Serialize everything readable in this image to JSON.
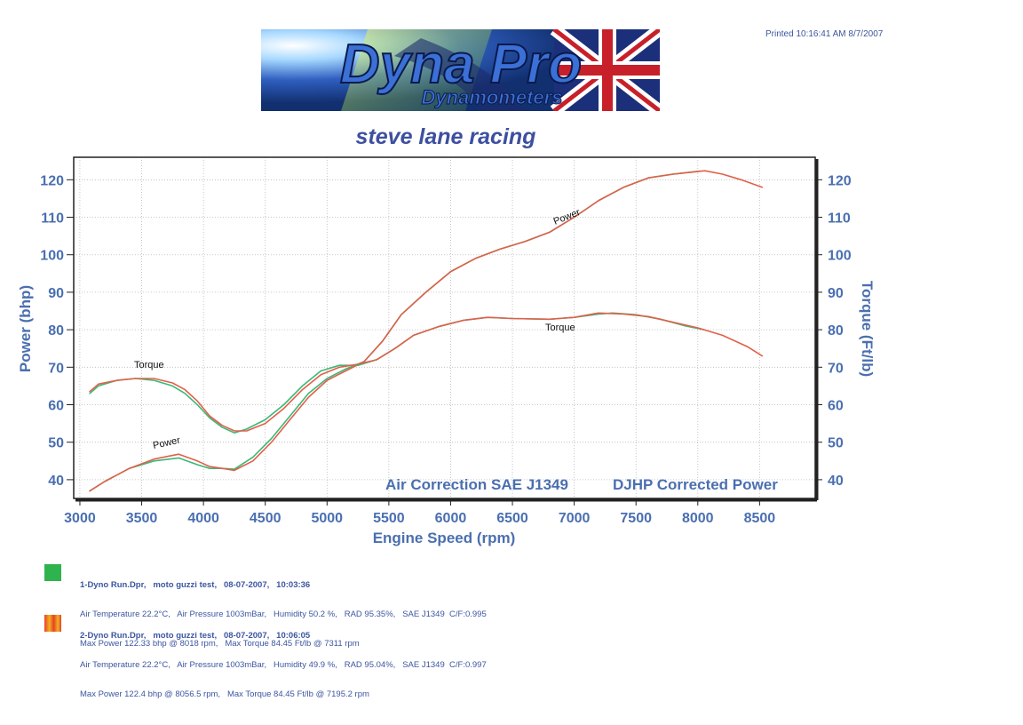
{
  "header": {
    "printed": "Printed 10:16:41 AM  8/7/2007",
    "logo_main": "Dyna Pro",
    "logo_sub": "Dynamometers",
    "subtitle": "steve lane racing"
  },
  "colors": {
    "run1": "#3cb878",
    "run2": "#e0604a",
    "axis_text": "#4a6fb0",
    "grid": "#b8b8b8",
    "text": "#3c56a0"
  },
  "chart_data": {
    "type": "line",
    "xlabel": "Engine Speed (rpm)",
    "ylabel_left": "Power (bhp)",
    "ylabel_right": "Torque (Ft/lb)",
    "xlim": [
      2950,
      8950
    ],
    "ylim": [
      35,
      126
    ],
    "x_ticks": [
      3000,
      3500,
      4000,
      4500,
      5000,
      5500,
      6000,
      6500,
      7000,
      7500,
      8000,
      8500
    ],
    "y_ticks": [
      40,
      50,
      60,
      70,
      80,
      90,
      100,
      110,
      120
    ],
    "grid": true,
    "annotations": {
      "torque_left": "Torque",
      "torque_right": "Torque",
      "power_left": "Power",
      "power_right": "Power",
      "air_correction": "Air Correction SAE J1349",
      "corrected": "DJHP Corrected Power"
    },
    "series": [
      {
        "name": "1-Dyno Run.Dpr - Power",
        "color": "#3cb878",
        "points": [
          [
            3080,
            37
          ],
          [
            3200,
            39.5
          ],
          [
            3400,
            43
          ],
          [
            3600,
            45
          ],
          [
            3800,
            45.8
          ],
          [
            3950,
            44
          ],
          [
            4050,
            43
          ],
          [
            4150,
            43
          ],
          [
            4250,
            42.8
          ],
          [
            4400,
            46
          ],
          [
            4550,
            51
          ],
          [
            4700,
            57
          ],
          [
            4850,
            63
          ],
          [
            5000,
            67
          ],
          [
            5150,
            69.5
          ],
          [
            5300,
            71.5
          ],
          [
            5450,
            77
          ],
          [
            5600,
            84
          ],
          [
            5800,
            90
          ],
          [
            6000,
            95.5
          ],
          [
            6200,
            99
          ],
          [
            6400,
            101.5
          ],
          [
            6600,
            103.5
          ],
          [
            6800,
            106
          ],
          [
            7000,
            110
          ],
          [
            7200,
            114.5
          ],
          [
            7400,
            118
          ],
          [
            7600,
            120.5
          ],
          [
            7800,
            121.5
          ],
          [
            8018,
            122.3
          ]
        ]
      },
      {
        "name": "2-Dyno Run.Dpr - Power",
        "color": "#e0604a",
        "points": [
          [
            3080,
            37
          ],
          [
            3200,
            39.5
          ],
          [
            3400,
            43
          ],
          [
            3600,
            45.5
          ],
          [
            3800,
            46.8
          ],
          [
            3950,
            45
          ],
          [
            4050,
            43.5
          ],
          [
            4150,
            43
          ],
          [
            4250,
            42.5
          ],
          [
            4400,
            45
          ],
          [
            4550,
            50
          ],
          [
            4700,
            56
          ],
          [
            4850,
            62
          ],
          [
            5000,
            66.5
          ],
          [
            5150,
            69
          ],
          [
            5300,
            71.5
          ],
          [
            5450,
            77
          ],
          [
            5600,
            84
          ],
          [
            5800,
            90
          ],
          [
            6000,
            95.5
          ],
          [
            6200,
            99
          ],
          [
            6400,
            101.5
          ],
          [
            6600,
            103.5
          ],
          [
            6800,
            106
          ],
          [
            7000,
            110
          ],
          [
            7200,
            114.5
          ],
          [
            7400,
            118
          ],
          [
            7600,
            120.5
          ],
          [
            7800,
            121.5
          ],
          [
            8056.5,
            122.4
          ],
          [
            8200,
            121.5
          ],
          [
            8350,
            120
          ],
          [
            8520,
            118
          ]
        ]
      },
      {
        "name": "1-Dyno Run.Dpr - Torque",
        "color": "#3cb878",
        "points": [
          [
            3080,
            63
          ],
          [
            3150,
            65
          ],
          [
            3300,
            66.5
          ],
          [
            3450,
            67
          ],
          [
            3600,
            66.5
          ],
          [
            3750,
            65
          ],
          [
            3850,
            63
          ],
          [
            3950,
            60
          ],
          [
            4050,
            56.5
          ],
          [
            4150,
            54
          ],
          [
            4250,
            52.5
          ],
          [
            4350,
            53.5
          ],
          [
            4500,
            56
          ],
          [
            4650,
            60
          ],
          [
            4800,
            65
          ],
          [
            4950,
            69
          ],
          [
            5100,
            70.5
          ],
          [
            5250,
            70.5
          ],
          [
            5400,
            72
          ],
          [
            5550,
            75
          ],
          [
            5700,
            78.5
          ],
          [
            5900,
            80.8
          ],
          [
            6100,
            82.5
          ],
          [
            6300,
            83.3
          ],
          [
            6500,
            83
          ],
          [
            6800,
            82.8
          ],
          [
            7000,
            83.3
          ],
          [
            7200,
            84.2
          ],
          [
            7311,
            84.45
          ],
          [
            7500,
            84
          ],
          [
            7700,
            82.8
          ],
          [
            7900,
            81
          ],
          [
            8050,
            80
          ]
        ]
      },
      {
        "name": "2-Dyno Run.Dpr - Torque",
        "color": "#e0604a",
        "points": [
          [
            3080,
            63.5
          ],
          [
            3150,
            65.5
          ],
          [
            3300,
            66.5
          ],
          [
            3450,
            67
          ],
          [
            3600,
            67
          ],
          [
            3750,
            65.8
          ],
          [
            3850,
            64
          ],
          [
            3950,
            61
          ],
          [
            4050,
            57
          ],
          [
            4150,
            54.5
          ],
          [
            4250,
            53
          ],
          [
            4350,
            53
          ],
          [
            4500,
            55
          ],
          [
            4650,
            59
          ],
          [
            4800,
            64
          ],
          [
            4950,
            68
          ],
          [
            5100,
            70
          ],
          [
            5250,
            70.8
          ],
          [
            5400,
            72
          ],
          [
            5550,
            75
          ],
          [
            5700,
            78.5
          ],
          [
            5900,
            80.8
          ],
          [
            6100,
            82.5
          ],
          [
            6300,
            83.3
          ],
          [
            6500,
            83
          ],
          [
            6800,
            82.8
          ],
          [
            7000,
            83.3
          ],
          [
            7195.2,
            84.45
          ],
          [
            7400,
            84.2
          ],
          [
            7600,
            83.5
          ],
          [
            7800,
            82
          ],
          [
            8000,
            80.5
          ],
          [
            8200,
            78.5
          ],
          [
            8400,
            75.5
          ],
          [
            8520,
            73
          ]
        ]
      }
    ]
  },
  "legend": [
    {
      "swatch": "green",
      "line1": "1-Dyno Run.Dpr,   moto guzzi test,   08-07-2007,   10:03:36",
      "line2": "Air Temperature 22.2°C,   Air Pressure 1003mBar,   Humidity 50.2 %,   RAD 95.35%,   SAE J1349  C/F:0.995",
      "line3": "Max Power 122.33 bhp @ 8018 rpm,   Max Torque 84.45 Ft/lb @ 7311 rpm"
    },
    {
      "swatch": "orange",
      "line1": "2-Dyno Run.Dpr,   moto guzzi test,   08-07-2007,   10:06:05",
      "line2": "Air Temperature 22.2°C,   Air Pressure 1003mBar,   Humidity 49.9 %,   RAD 95.04%,   SAE J1349  C/F:0.997",
      "line3": "Max Power 122.4 bhp @ 8056.5 rpm,   Max Torque 84.45 Ft/lb @ 7195.2 rpm"
    }
  ]
}
